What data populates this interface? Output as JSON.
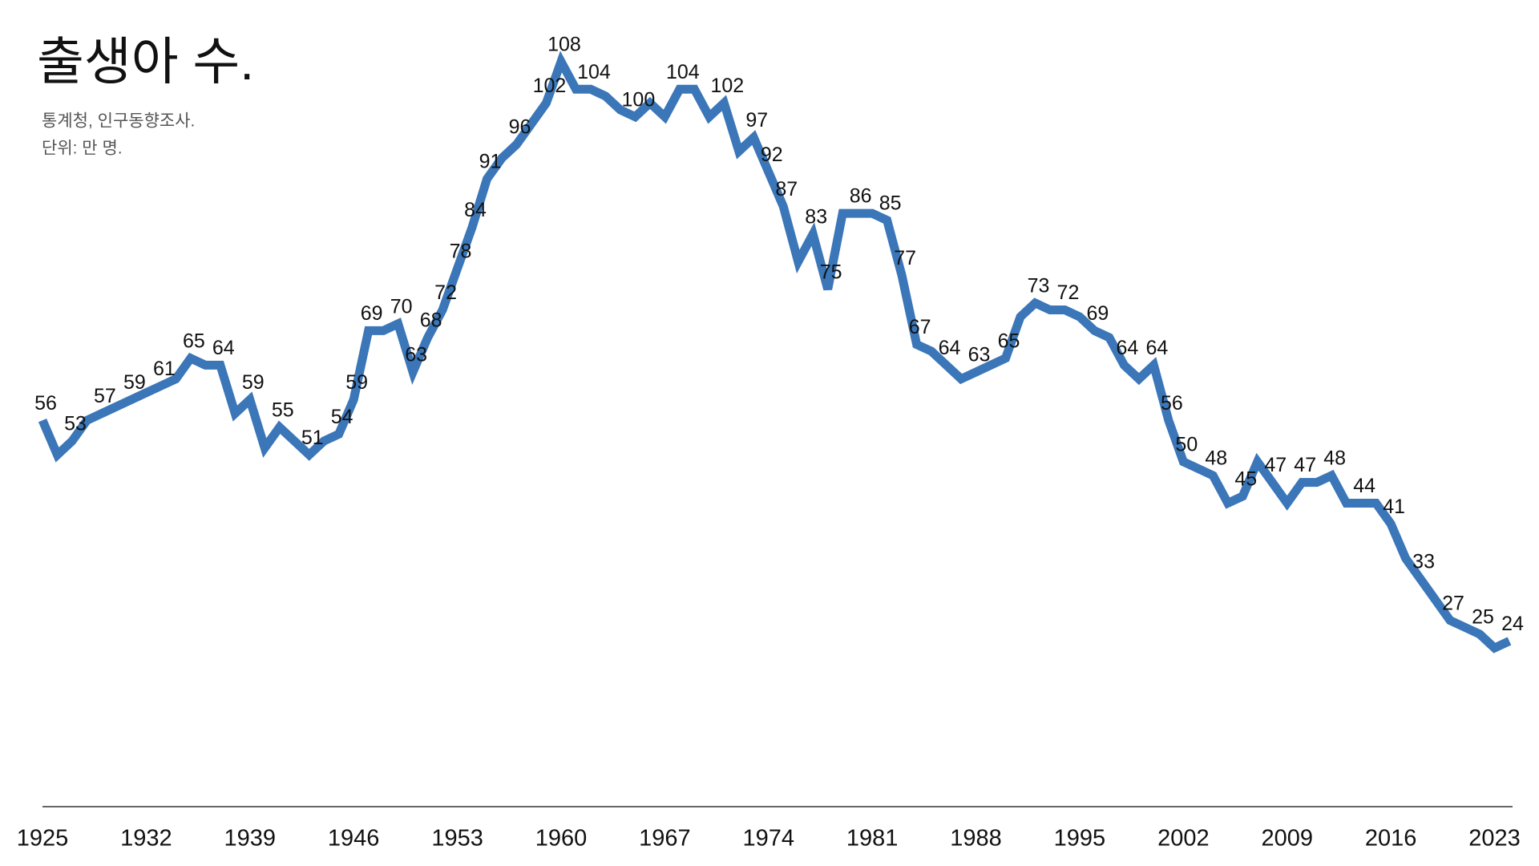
{
  "chart_data": {
    "type": "line",
    "title": "출생아 수.",
    "subtitle": "통계청, 인구동향조사.",
    "unit_note": "단위: 만 명.",
    "x": [
      1925,
      1926,
      1927,
      1928,
      1929,
      1930,
      1931,
      1932,
      1933,
      1934,
      1935,
      1936,
      1937,
      1938,
      1939,
      1940,
      1941,
      1942,
      1943,
      1944,
      1945,
      1946,
      1947,
      1948,
      1949,
      1950,
      1951,
      1952,
      1953,
      1954,
      1955,
      1956,
      1957,
      1958,
      1959,
      1960,
      1961,
      1962,
      1963,
      1964,
      1965,
      1966,
      1967,
      1968,
      1969,
      1970,
      1971,
      1972,
      1973,
      1974,
      1975,
      1976,
      1977,
      1978,
      1979,
      1980,
      1981,
      1982,
      1983,
      1984,
      1985,
      1986,
      1987,
      1988,
      1989,
      1990,
      1991,
      1992,
      1993,
      1994,
      1995,
      1996,
      1997,
      1998,
      1999,
      2000,
      2001,
      2002,
      2003,
      2004,
      2005,
      2006,
      2007,
      2008,
      2009,
      2010,
      2011,
      2012,
      2013,
      2014,
      2015,
      2016,
      2017,
      2018,
      2019,
      2020,
      2021,
      2022,
      2023,
      2024
    ],
    "series": [
      {
        "name": "출생아 수",
        "color": "#3a76b8",
        "values": [
          56,
          51,
          53,
          56,
          57,
          58,
          59,
          60,
          61,
          62,
          65,
          64,
          64,
          57,
          59,
          52,
          55,
          53,
          51,
          53,
          54,
          59,
          69,
          69,
          70,
          63,
          68,
          72,
          78,
          84,
          91,
          94,
          96,
          99,
          102,
          108,
          104,
          104,
          103,
          101,
          100,
          102,
          100,
          104,
          104,
          100,
          102,
          95,
          97,
          92,
          87,
          79,
          83,
          75,
          86,
          86,
          86,
          85,
          77,
          67,
          66,
          64,
          62,
          63,
          64,
          65,
          71,
          73,
          72,
          72,
          71,
          69,
          68,
          64,
          62,
          64,
          56,
          50,
          49,
          48,
          44,
          45,
          50,
          47,
          44,
          47,
          47,
          48,
          44,
          44,
          44,
          41,
          36,
          33,
          30,
          27,
          26,
          25,
          23,
          24
        ],
        "value_labels": [
          "56",
          null,
          "53",
          null,
          "57",
          null,
          "59",
          null,
          "61",
          null,
          "65",
          null,
          "64",
          null,
          "59",
          null,
          "55",
          null,
          "51",
          null,
          "54",
          "59",
          "69",
          null,
          "70",
          "63",
          "68",
          "72",
          "78",
          "84",
          "91",
          null,
          "96",
          null,
          "102",
          "108",
          null,
          "104",
          null,
          null,
          "100",
          null,
          null,
          "104",
          null,
          null,
          "102",
          null,
          "97",
          "92",
          "87",
          null,
          "83",
          "75",
          null,
          "86",
          null,
          "85",
          "77",
          "67",
          null,
          "64",
          null,
          "63",
          null,
          "65",
          null,
          "73",
          null,
          "72",
          null,
          "69",
          null,
          "64",
          null,
          "64",
          "56",
          "50",
          null,
          "48",
          null,
          "45",
          null,
          "47",
          null,
          "47",
          null,
          "48",
          null,
          "44",
          null,
          "41",
          null,
          "33",
          null,
          "27",
          null,
          "25",
          null,
          "24"
        ]
      }
    ],
    "xlim": [
      1925,
      2024
    ],
    "xticks": [
      1925,
      1932,
      1939,
      1946,
      1953,
      1960,
      1967,
      1974,
      1981,
      1988,
      1995,
      2002,
      2009,
      2016,
      2023
    ],
    "ylim": [
      0,
      116
    ],
    "grid": false
  }
}
